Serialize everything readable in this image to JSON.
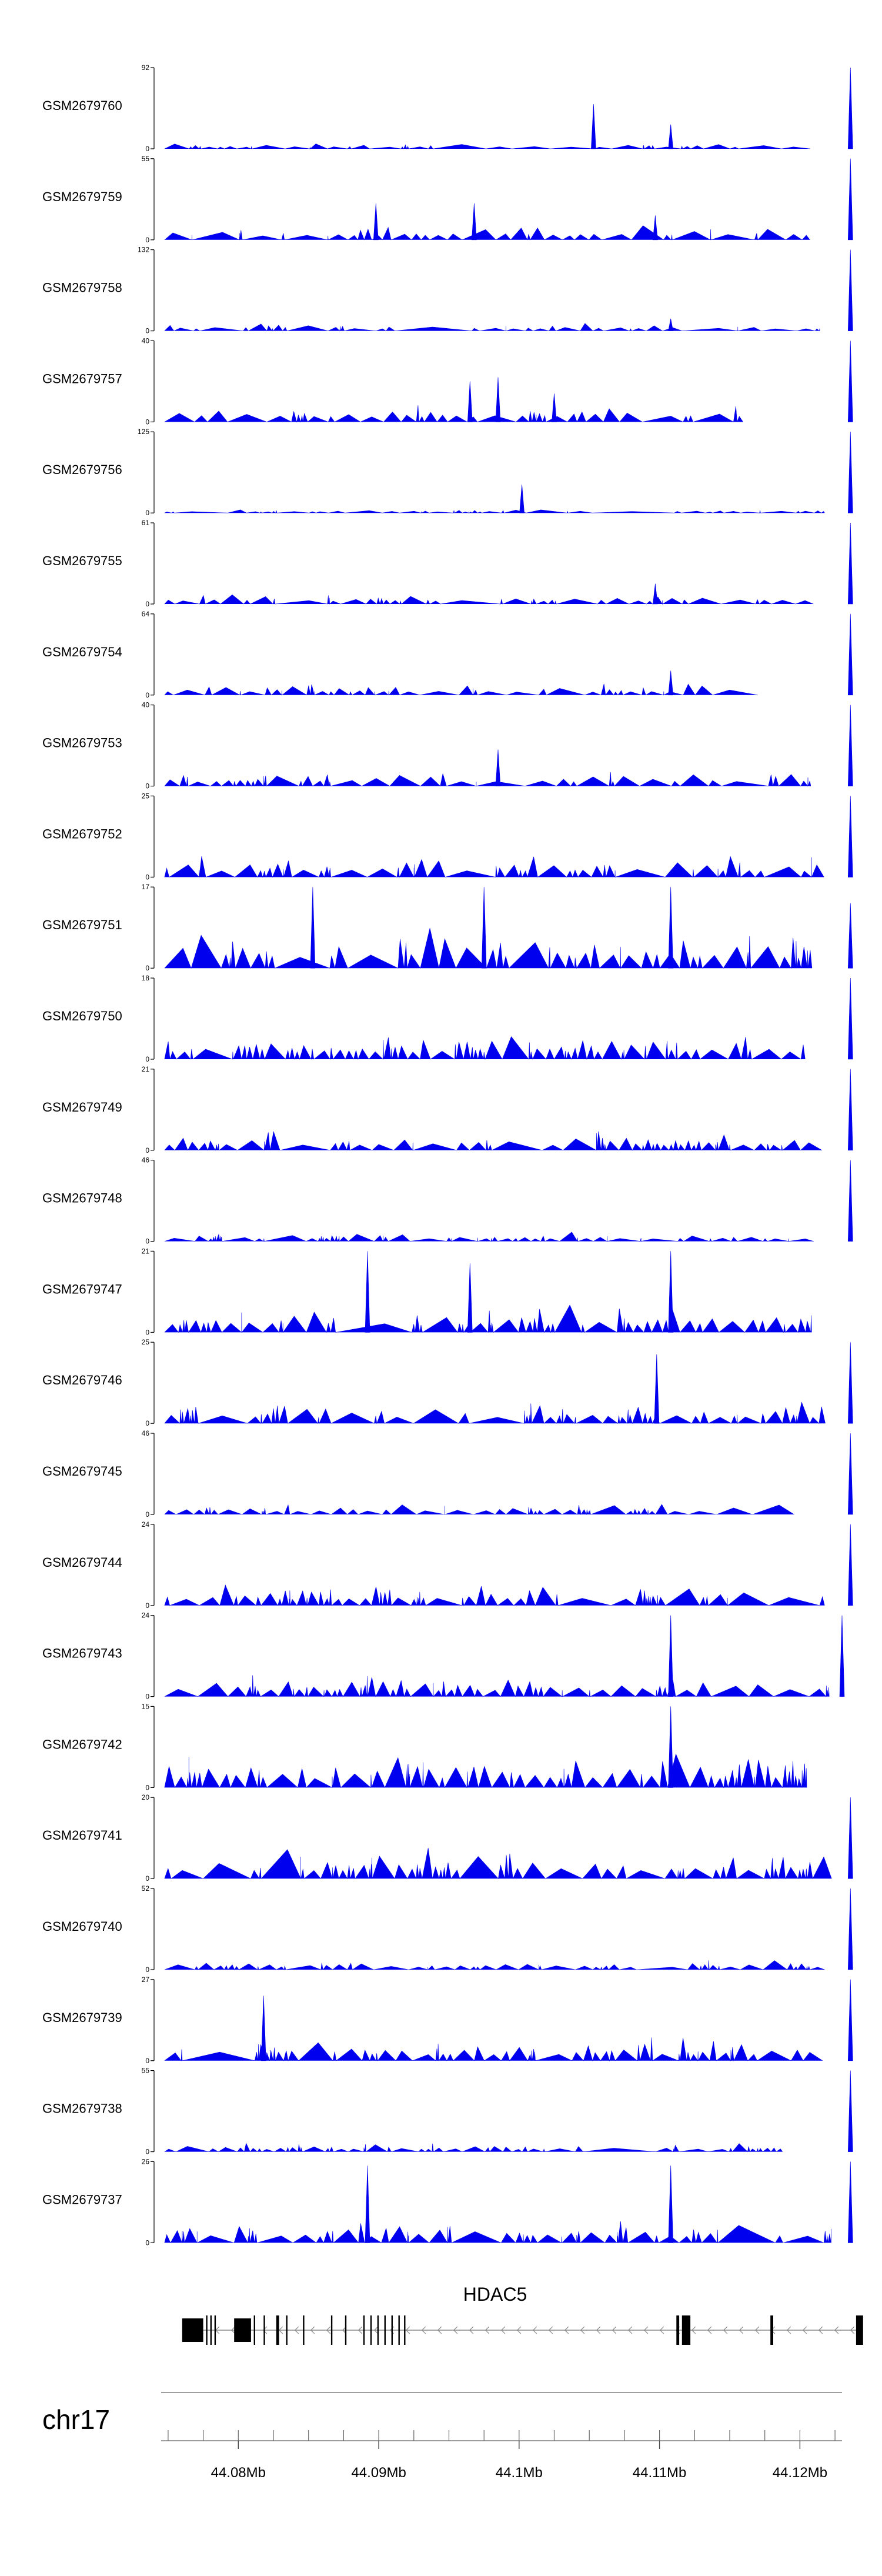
{
  "chart_data": {
    "type": "area",
    "title": "",
    "chromosome": "chr17",
    "gene": {
      "name": "HDAC5",
      "strand": "-",
      "start_mb": 44.076,
      "end_mb": 44.1245,
      "exons": [
        [
          44.076,
          44.0775
        ],
        [
          44.0777,
          44.0778
        ],
        [
          44.078,
          44.0781
        ],
        [
          44.0783,
          44.0784
        ],
        [
          44.0797,
          44.0809
        ],
        [
          44.0811,
          44.0812
        ],
        [
          44.0818,
          44.0819
        ],
        [
          44.0827,
          44.0829
        ],
        [
          44.0834,
          44.0835
        ],
        [
          44.0846,
          44.0847
        ],
        [
          44.0866,
          44.0867
        ],
        [
          44.0876,
          44.0877
        ],
        [
          44.0889,
          44.089
        ],
        [
          44.0894,
          44.0895
        ],
        [
          44.0899,
          44.09
        ],
        [
          44.0904,
          44.0905
        ],
        [
          44.0909,
          44.091
        ],
        [
          44.0914,
          44.0915
        ],
        [
          44.0918,
          44.0919
        ],
        [
          44.1112,
          44.1114
        ],
        [
          44.1116,
          44.1122
        ],
        [
          44.1179,
          44.1181
        ],
        [
          44.124,
          44.1245
        ]
      ]
    },
    "xlim": [
      44.0745,
      44.123
    ],
    "xaxis_ticks": [
      "44.08Mb",
      "44.09Mb",
      "44.1Mb",
      "44.11Mb",
      "44.12Mb"
    ],
    "xaxis_tick_values": [
      44.08,
      44.09,
      44.1,
      44.11,
      44.12
    ],
    "xaxis_minor_step": 0.0025,
    "tracks": [
      {
        "sample": "GSM2679760",
        "ymax": 92,
        "seed": 11,
        "density": 40,
        "base": 0.08,
        "peaks": [
          [
            44.1053,
            0.55
          ],
          [
            44.1108,
            0.3
          ],
          [
            44.1236,
            1.0
          ]
        ]
      },
      {
        "sample": "GSM2679759",
        "ymax": 55,
        "seed": 12,
        "density": 40,
        "base": 0.2,
        "peaks": [
          [
            44.0898,
            0.45
          ],
          [
            44.0968,
            0.45
          ],
          [
            44.1097,
            0.3
          ],
          [
            44.1236,
            1.0
          ]
        ]
      },
      {
        "sample": "GSM2679758",
        "ymax": 132,
        "seed": 13,
        "density": 40,
        "base": 0.1,
        "peaks": [
          [
            44.1108,
            0.15
          ],
          [
            44.1236,
            1.0
          ]
        ]
      },
      {
        "sample": "GSM2679757",
        "ymax": 40,
        "seed": 14,
        "density": 40,
        "base": 0.25,
        "peaks": [
          [
            44.0965,
            0.5
          ],
          [
            44.0985,
            0.55
          ],
          [
            44.1025,
            0.35
          ],
          [
            44.1236,
            1.0
          ]
        ]
      },
      {
        "sample": "GSM2679756",
        "ymax": 125,
        "seed": 15,
        "density": 45,
        "base": 0.05,
        "peaks": [
          [
            44.1002,
            0.35
          ],
          [
            44.1236,
            1.0
          ]
        ]
      },
      {
        "sample": "GSM2679755",
        "ymax": 61,
        "seed": 16,
        "density": 45,
        "base": 0.14,
        "peaks": [
          [
            44.1097,
            0.25
          ],
          [
            44.1236,
            1.0
          ]
        ]
      },
      {
        "sample": "GSM2679754",
        "ymax": 64,
        "seed": 17,
        "density": 45,
        "base": 0.15,
        "peaks": [
          [
            44.1108,
            0.3
          ],
          [
            44.1236,
            1.0
          ]
        ]
      },
      {
        "sample": "GSM2679753",
        "ymax": 40,
        "seed": 18,
        "density": 45,
        "base": 0.2,
        "peaks": [
          [
            44.0985,
            0.45
          ],
          [
            44.1236,
            1.0
          ]
        ]
      },
      {
        "sample": "GSM2679752",
        "ymax": 25,
        "seed": 19,
        "density": 55,
        "base": 0.3,
        "peaks": [
          [
            44.1236,
            1.0
          ]
        ]
      },
      {
        "sample": "GSM2679751",
        "ymax": 17,
        "seed": 20,
        "density": 50,
        "base": 0.5,
        "peaks": [
          [
            44.0853,
            1.0
          ],
          [
            44.0975,
            1.0
          ],
          [
            44.1108,
            1.0
          ],
          [
            44.1236,
            0.8
          ]
        ]
      },
      {
        "sample": "GSM2679750",
        "ymax": 18,
        "seed": 21,
        "density": 70,
        "base": 0.35,
        "peaks": [
          [
            44.1236,
            1.0
          ]
        ]
      },
      {
        "sample": "GSM2679749",
        "ymax": 21,
        "seed": 22,
        "density": 60,
        "base": 0.25,
        "peaks": [
          [
            44.1236,
            1.0
          ]
        ]
      },
      {
        "sample": "GSM2679748",
        "ymax": 46,
        "seed": 23,
        "density": 60,
        "base": 0.12,
        "peaks": [
          [
            44.1236,
            1.0
          ]
        ]
      },
      {
        "sample": "GSM2679747",
        "ymax": 21,
        "seed": 24,
        "density": 60,
        "base": 0.35,
        "peaks": [
          [
            44.0892,
            1.0
          ],
          [
            44.0965,
            0.85
          ],
          [
            44.1108,
            1.0
          ]
        ]
      },
      {
        "sample": "GSM2679746",
        "ymax": 25,
        "seed": 25,
        "density": 60,
        "base": 0.3,
        "peaks": [
          [
            44.1098,
            0.85
          ],
          [
            44.1236,
            1.0
          ]
        ]
      },
      {
        "sample": "GSM2679745",
        "ymax": 46,
        "seed": 26,
        "density": 50,
        "base": 0.15,
        "peaks": [
          [
            44.1236,
            1.0
          ]
        ]
      },
      {
        "sample": "GSM2679744",
        "ymax": 24,
        "seed": 27,
        "density": 60,
        "base": 0.3,
        "peaks": [
          [
            44.1236,
            1.0
          ]
        ]
      },
      {
        "sample": "GSM2679743",
        "ymax": 24,
        "seed": 28,
        "density": 60,
        "base": 0.3,
        "peaks": [
          [
            44.1108,
            1.0
          ],
          [
            44.123,
            1.0
          ]
        ]
      },
      {
        "sample": "GSM2679742",
        "ymax": 15,
        "seed": 29,
        "density": 70,
        "base": 0.45,
        "peaks": [
          [
            44.1108,
            1.0
          ]
        ]
      },
      {
        "sample": "GSM2679741",
        "ymax": 20,
        "seed": 30,
        "density": 60,
        "base": 0.4,
        "peaks": [
          [
            44.1236,
            1.0
          ]
        ]
      },
      {
        "sample": "GSM2679740",
        "ymax": 52,
        "seed": 31,
        "density": 55,
        "base": 0.12,
        "peaks": [
          [
            44.1236,
            1.0
          ]
        ]
      },
      {
        "sample": "GSM2679739",
        "ymax": 27,
        "seed": 32,
        "density": 60,
        "base": 0.3,
        "peaks": [
          [
            44.0818,
            0.8
          ],
          [
            44.1236,
            1.0
          ]
        ]
      },
      {
        "sample": "GSM2679738",
        "ymax": 55,
        "seed": 33,
        "density": 55,
        "base": 0.12,
        "peaks": [
          [
            44.1236,
            1.0
          ]
        ]
      },
      {
        "sample": "GSM2679737",
        "ymax": 26,
        "seed": 34,
        "density": 60,
        "base": 0.3,
        "peaks": [
          [
            44.0892,
            0.95
          ],
          [
            44.1108,
            0.95
          ],
          [
            44.1236,
            1.0
          ]
        ]
      }
    ]
  },
  "colors": {
    "signal": "#0000ee",
    "axis": "#000000",
    "intron": "#888888",
    "gene": "#000000"
  }
}
